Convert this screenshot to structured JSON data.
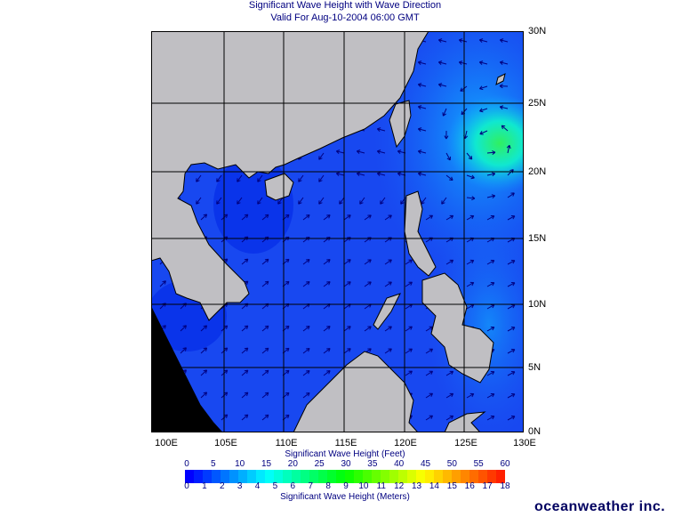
{
  "title": "Significant Wave Height with Wave Direction",
  "subtitle": "Valid For Aug-10-2004 06:00 GMT",
  "map": {
    "lon_labels": [
      "100E",
      "105E",
      "110E",
      "115E",
      "120E",
      "125E",
      "130E"
    ],
    "lat_labels": [
      "30N",
      "25N",
      "20N",
      "15N",
      "10N",
      "5N",
      "0N"
    ],
    "colors": {
      "land": "#c0bfc3",
      "ocean": "#1848f0",
      "coast": "#000000",
      "grid": "#000000",
      "arrow": "#000080"
    }
  },
  "colorbar": {
    "feet_title": "Significant Wave Height (Feet)",
    "meters_title": "Significant Wave Height (Meters)",
    "feet_ticks": [
      "0",
      "5",
      "10",
      "15",
      "20",
      "25",
      "30",
      "35",
      "40",
      "45",
      "50",
      "55",
      "60"
    ],
    "meter_ticks": [
      "0",
      "1",
      "2",
      "3",
      "4",
      "5",
      "6",
      "7",
      "8",
      "9",
      "10",
      "11",
      "12",
      "13",
      "14",
      "15",
      "16",
      "17",
      "18"
    ],
    "color_stops": [
      "#0000ff",
      "#00ffff",
      "#00ff00",
      "#ffff00",
      "#ff2000"
    ]
  },
  "logo": "oceanweather inc."
}
